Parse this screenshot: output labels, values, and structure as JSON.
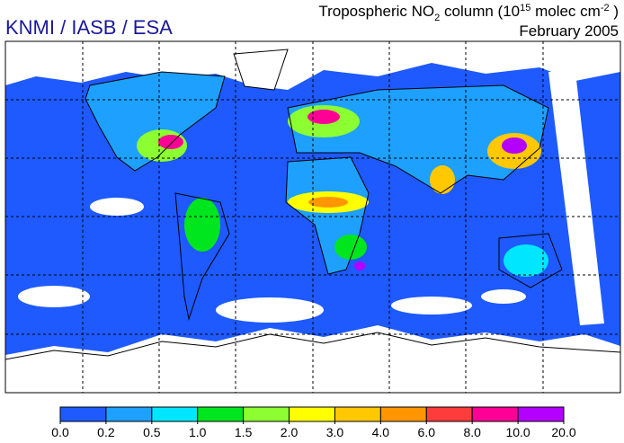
{
  "header": {
    "agency": "KNMI / IASB / ESA",
    "title": [
      "Tropospheric NO",
      "2",
      " column (10",
      "15",
      " molec cm",
      "-2",
      " )"
    ],
    "date": "February 2005"
  },
  "colorbar": {
    "ticks": [
      {
        "value": 0,
        "label": "0.0"
      },
      {
        "value": 0.2,
        "label": "0.2"
      },
      {
        "value": 0.5,
        "label": "0.5"
      },
      {
        "value": 1,
        "label": "1.0"
      },
      {
        "value": 1.5,
        "label": "1.5"
      },
      {
        "value": 2,
        "label": "2.0"
      },
      {
        "value": 3,
        "label": "3.0"
      },
      {
        "value": 4,
        "label": "4.0"
      },
      {
        "value": 6,
        "label": "6.0"
      },
      {
        "value": 8,
        "label": "8.0"
      },
      {
        "value": 10,
        "label": "10.0"
      },
      {
        "value": 20,
        "label": "20.0"
      }
    ],
    "colors": [
      "#1e5aff",
      "#1ea0ff",
      "#00e6ff",
      "#00e61e",
      "#8cff32",
      "#ffff00",
      "#ffc800",
      "#ff9600",
      "#ff3c3c",
      "#ff0096",
      "#b400ff"
    ]
  }
}
